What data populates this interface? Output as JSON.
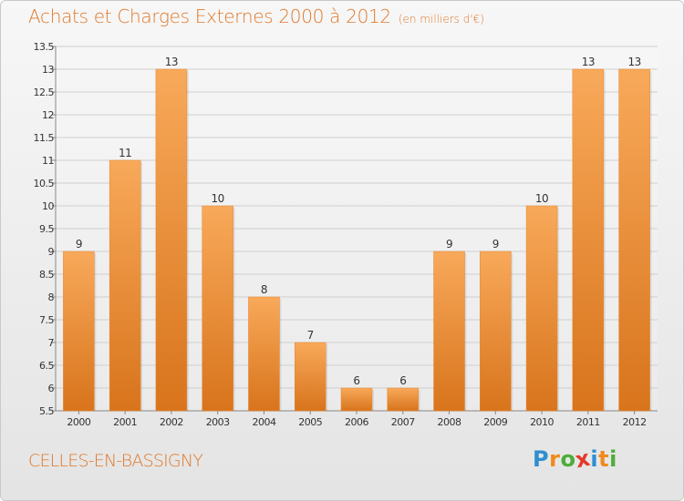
{
  "header": {
    "title": "Achats et Charges Externes 2000 à 2012",
    "subtitle": "(en milliers d'€)"
  },
  "footer": {
    "city": "CELLES-EN-BASSIGNY",
    "brand_letters": [
      "P",
      "r",
      "o",
      "x",
      "i",
      "t",
      "i"
    ],
    "brand_colors": [
      "#2f8fd0",
      "#f08a1c",
      "#4cae3a",
      "#e23a2a",
      "#2f8fd0",
      "#f08a1c",
      "#4cae3a"
    ]
  },
  "chart_data": {
    "type": "bar",
    "title": "Achats et Charges Externes 2000 à 2012",
    "subtitle": "(en milliers d'€)",
    "categories": [
      "2000",
      "2001",
      "2002",
      "2003",
      "2004",
      "2005",
      "2006",
      "2007",
      "2008",
      "2009",
      "2010",
      "2011",
      "2012"
    ],
    "values": [
      9,
      11,
      13,
      10,
      8,
      7,
      6,
      6,
      9,
      9,
      10,
      13,
      13
    ],
    "data_labels": [
      "9",
      "11",
      "13",
      "10",
      "8",
      "7",
      "6",
      "6",
      "9",
      "9",
      "10",
      "13",
      "13"
    ],
    "y_ticks": [
      "5.5",
      "6",
      "6.5",
      "7",
      "7.5",
      "8",
      "8.5",
      "9",
      "9.5",
      "10",
      "10.5",
      "11",
      "11.5",
      "12",
      "12.5",
      "13",
      "13.5"
    ],
    "ylim": [
      5.5,
      13.5
    ],
    "grid": true,
    "bar_color": "#f0903a",
    "bar_color_light": "#f8a95a",
    "bar_color_dark": "#d8741c"
  }
}
